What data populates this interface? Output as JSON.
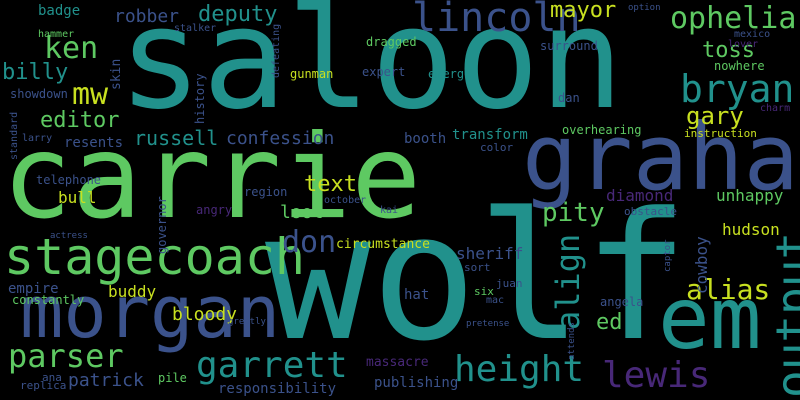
{
  "palette": {
    "background": "#000000",
    "purple": "#482878",
    "blue": "#3b528b",
    "teal": "#21918c",
    "green": "#5ec962",
    "yellow": "#c8e020"
  },
  "words": [
    {
      "text": "saloon",
      "color": "#21918c",
      "rank": 1
    },
    {
      "text": "carrie",
      "color": "#5ec962",
      "rank": 2
    },
    {
      "text": "wolf",
      "color": "#21918c",
      "rank": 3
    },
    {
      "text": "graham",
      "color": "#3b528b",
      "rank": 4
    },
    {
      "text": "morgan",
      "color": "#3b528b",
      "rank": 5
    },
    {
      "text": "em",
      "color": "#21918c",
      "rank": 6
    },
    {
      "text": "stagecoach",
      "color": "#5ec962",
      "rank": 7
    },
    {
      "text": "output",
      "color": "#21918c",
      "rank": 8
    },
    {
      "text": "lincoln",
      "color": "#3b528b",
      "rank": 9
    },
    {
      "text": "bryan",
      "color": "#21918c",
      "rank": 10
    },
    {
      "text": "garrett",
      "color": "#21918c",
      "rank": 11
    },
    {
      "text": "height",
      "color": "#21918c",
      "rank": 12
    },
    {
      "text": "lewis",
      "color": "#482878",
      "rank": 13
    },
    {
      "text": "parser",
      "color": "#5ec962",
      "rank": 14
    },
    {
      "text": "ophelia",
      "color": "#5ec962",
      "rank": 15
    },
    {
      "text": "ken",
      "color": "#5ec962",
      "rank": 16
    },
    {
      "text": "mw",
      "color": "#c8e020",
      "rank": 17
    },
    {
      "text": "don",
      "color": "#3b528b",
      "rank": 18
    },
    {
      "text": "align",
      "color": "#21918c",
      "rank": 19
    },
    {
      "text": "alias",
      "color": "#c8e020",
      "rank": 20
    },
    {
      "text": "pity",
      "color": "#5ec962",
      "rank": 21
    },
    {
      "text": "gary",
      "color": "#c8e020",
      "rank": 22
    },
    {
      "text": "billy",
      "color": "#21918c",
      "rank": 23
    },
    {
      "text": "editor",
      "color": "#5ec962",
      "rank": 24
    },
    {
      "text": "mayor",
      "color": "#c8e020",
      "rank": 25
    },
    {
      "text": "deputy",
      "color": "#21918c",
      "rank": 26
    },
    {
      "text": "toss",
      "color": "#5ec962",
      "rank": 27
    },
    {
      "text": "russell",
      "color": "#21918c",
      "rank": 28
    },
    {
      "text": "text",
      "color": "#c8e020",
      "rank": 29
    },
    {
      "text": "robber",
      "color": "#3b528b",
      "rank": 30
    },
    {
      "text": "confession",
      "color": "#3b528b",
      "rank": 31
    },
    {
      "text": "loot",
      "color": "#5ec962",
      "rank": 32
    },
    {
      "text": "ed",
      "color": "#5ec962",
      "rank": 33
    },
    {
      "text": "bloody",
      "color": "#c8e020",
      "rank": 34
    },
    {
      "text": "patrick",
      "color": "#3b528b",
      "rank": 35
    },
    {
      "text": "diamond",
      "color": "#482878",
      "rank": 36
    },
    {
      "text": "hudson",
      "color": "#c8e020",
      "rank": 37
    },
    {
      "text": "cowboy",
      "color": "#3b528b",
      "rank": 38
    },
    {
      "text": "unhappy",
      "color": "#5ec962",
      "rank": 39
    },
    {
      "text": "buddy",
      "color": "#c8e020",
      "rank": 40
    },
    {
      "text": "bull",
      "color": "#c8e020",
      "rank": 41
    },
    {
      "text": "sheriff",
      "color": "#3b528b",
      "rank": 42
    },
    {
      "text": "resents",
      "color": "#3b528b",
      "rank": 43
    },
    {
      "text": "booth",
      "color": "#3b528b",
      "rank": 44
    },
    {
      "text": "transform",
      "color": "#21918c",
      "rank": 45
    },
    {
      "text": "empire",
      "color": "#3b528b",
      "rank": 46
    },
    {
      "text": "hat",
      "color": "#3b528b",
      "rank": 47
    },
    {
      "text": "responsibility",
      "color": "#3b528b",
      "rank": 48
    },
    {
      "text": "publishing",
      "color": "#3b528b",
      "rank": 49
    },
    {
      "text": "circumstance",
      "color": "#c8e020",
      "rank": 50
    },
    {
      "text": "massacre",
      "color": "#482878",
      "rank": 51
    },
    {
      "text": "showdown",
      "color": "#3b528b",
      "rank": 52
    },
    {
      "text": "badge",
      "color": "#21918c",
      "rank": 53
    },
    {
      "text": "skin",
      "color": "#3b528b",
      "rank": 54
    },
    {
      "text": "gunman",
      "color": "#c8e020",
      "rank": 55
    },
    {
      "text": "expert",
      "color": "#3b528b",
      "rank": 56
    },
    {
      "text": "emerge",
      "color": "#21918c",
      "rank": 57
    },
    {
      "text": "dragged",
      "color": "#5ec962",
      "rank": 58
    },
    {
      "text": "surround",
      "color": "#3b528b",
      "rank": 59
    },
    {
      "text": "nowhere",
      "color": "#5ec962",
      "rank": 60
    },
    {
      "text": "dan",
      "color": "#3b528b",
      "rank": 61
    },
    {
      "text": "overhearing",
      "color": "#5ec962",
      "rank": 62
    },
    {
      "text": "history",
      "color": "#3b528b",
      "rank": 63
    },
    {
      "text": "governor",
      "color": "#3b528b",
      "rank": 64
    },
    {
      "text": "angry",
      "color": "#482878",
      "rank": 65
    },
    {
      "text": "telephone",
      "color": "#3b528b",
      "rank": 66
    },
    {
      "text": "angela",
      "color": "#3b528b",
      "rank": 67
    },
    {
      "text": "constantly",
      "color": "#5ec962",
      "rank": 68
    },
    {
      "text": "region",
      "color": "#3b528b",
      "rank": 69
    },
    {
      "text": "instruction",
      "color": "#c8e020",
      "rank": 70
    },
    {
      "text": "obstacle",
      "color": "#3b528b",
      "rank": 71
    },
    {
      "text": "color",
      "color": "#3b528b",
      "rank": 72
    },
    {
      "text": "sort",
      "color": "#3b528b",
      "rank": 73
    },
    {
      "text": "juan",
      "color": "#3b528b",
      "rank": 74
    },
    {
      "text": "six",
      "color": "#5ec962",
      "rank": 75
    },
    {
      "text": "mac",
      "color": "#3b528b",
      "rank": 76
    },
    {
      "text": "pile",
      "color": "#5ec962",
      "rank": 77
    },
    {
      "text": "ana",
      "color": "#3b528b",
      "rank": 78
    },
    {
      "text": "replica",
      "color": "#3b528b",
      "rank": 79
    },
    {
      "text": "mexico",
      "color": "#3b528b",
      "rank": 80
    },
    {
      "text": "lover",
      "color": "#482878",
      "rank": 81
    },
    {
      "text": "charm",
      "color": "#482878",
      "rank": 82
    },
    {
      "text": "stalker",
      "color": "#3b528b",
      "rank": 83
    },
    {
      "text": "hammer",
      "color": "#5ec962",
      "rank": 84
    },
    {
      "text": "larry",
      "color": "#3b528b",
      "rank": 85
    },
    {
      "text": "standard",
      "color": "#3b528b",
      "rank": 86
    },
    {
      "text": "october",
      "color": "#3b528b",
      "rank": 87
    },
    {
      "text": "kai",
      "color": "#3b528b",
      "rank": 88
    },
    {
      "text": "defeating",
      "color": "#3b528b",
      "rank": 89
    },
    {
      "text": "actress",
      "color": "#3b528b",
      "rank": 90
    },
    {
      "text": "captor",
      "color": "#3b528b",
      "rank": 91
    },
    {
      "text": "option",
      "color": "#3b528b",
      "rank": 92
    },
    {
      "text": "attends",
      "color": "#3b528b",
      "rank": 93
    },
    {
      "text": "pretense",
      "color": "#3b528b",
      "rank": 94
    },
    {
      "text": "greatly",
      "color": "#3b528b",
      "rank": 95
    }
  ]
}
